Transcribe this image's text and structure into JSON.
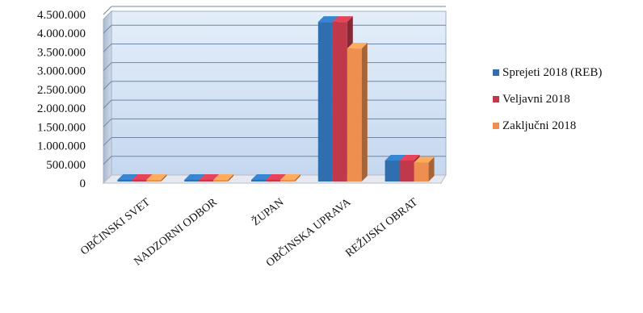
{
  "chart_data": {
    "type": "bar",
    "title": "",
    "xlabel": "",
    "ylabel": "",
    "categories": [
      "OBČINSKI SVET",
      "NADZORNI ODBOR",
      "ŽUPAN",
      "OBČINSKA UPRAVA",
      "REŽIJSKI OBRAT"
    ],
    "series": [
      {
        "name": "Sprejeti 2018 (REB)",
        "color": "#2f6fb0",
        "values": [
          38000,
          20000,
          42000,
          4260000,
          560000
        ]
      },
      {
        "name": "Veljavni 2018",
        "color": "#c0394b",
        "values": [
          38000,
          20000,
          42000,
          4260000,
          560000
        ]
      },
      {
        "name": "Zaključni 2018",
        "color": "#ef8f4f",
        "values": [
          30000,
          15000,
          38000,
          3550000,
          510000
        ]
      }
    ],
    "ylim": [
      0,
      4500000
    ],
    "yticks": [
      "0",
      "500.000",
      "1.000.000",
      "1.500.000",
      "2.000.000",
      "2.500.000",
      "3.000.000",
      "3.500.000",
      "4.000.000",
      "4.500.000"
    ],
    "grid": true,
    "legend_position": "right"
  }
}
